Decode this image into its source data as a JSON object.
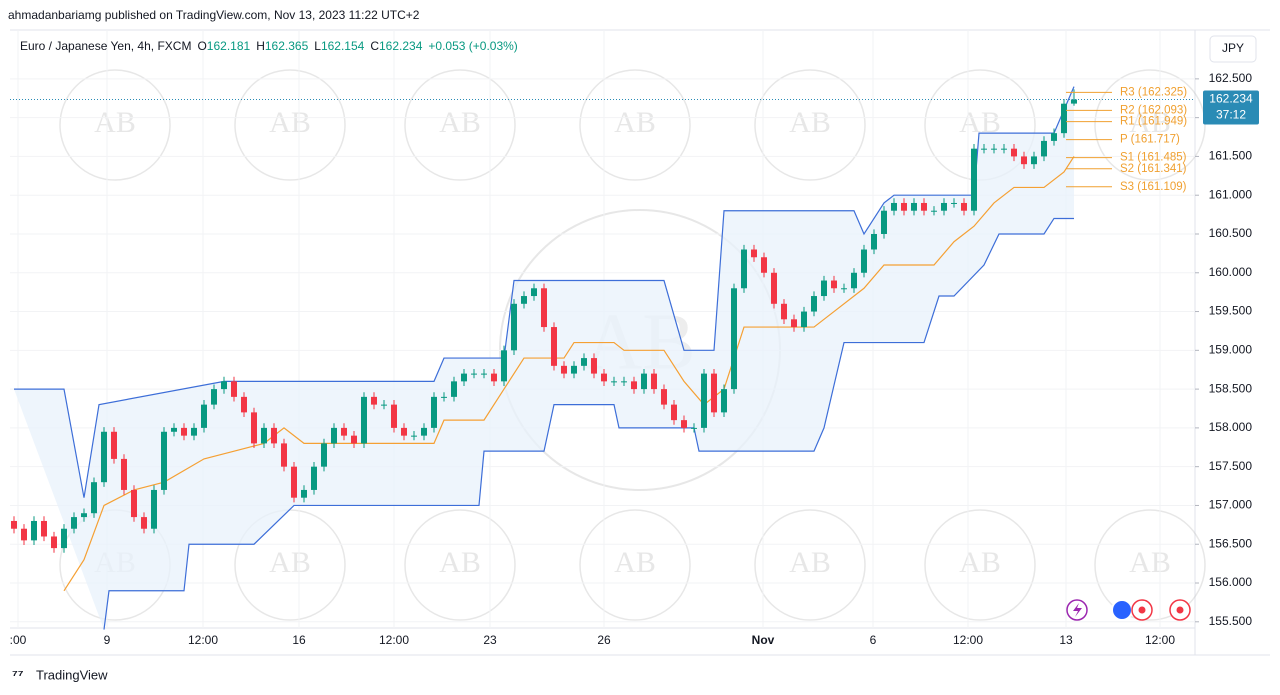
{
  "header": {
    "published": "ahmadanbariamg published on TradingView.com, Nov 13, 2023 11:22 UTC+2",
    "symbol": "Euro / Japanese Yen, 4h, FXCM",
    "o": "O",
    "h": "H",
    "l": "L",
    "c": "C",
    "change": "+0.053 (+0.03%)",
    "currency": "JPY"
  },
  "footer": {
    "brand": "TradingView"
  },
  "watermark": "AB",
  "chart_data": {
    "type": "candlestick",
    "xlim": [
      -0.4,
      118.1
    ],
    "ylim": [
      155.42,
      163.13
    ],
    "grid": true,
    "xticks": [
      {
        "value": 0.4,
        "label": ":00"
      },
      {
        "value": 9.3,
        "label": "9"
      },
      {
        "value": 18.9,
        "label": "12:00"
      },
      {
        "value": 28.5,
        "label": "16"
      },
      {
        "value": 38,
        "label": "12:00"
      },
      {
        "value": 47.6,
        "label": "23"
      },
      {
        "value": 59,
        "label": "26"
      },
      {
        "value": 74.9,
        "label": "Nov"
      },
      {
        "value": 85.9,
        "label": "6"
      },
      {
        "value": 95.4,
        "label": "12:00"
      },
      {
        "value": 105.2,
        "label": "13"
      },
      {
        "value": 114.6,
        "label": "12:00"
      }
    ],
    "yticks": [
      {
        "value": 162.5,
        "label": "162.500"
      },
      {
        "value": 162,
        "label": "162.000"
      },
      {
        "value": 161.5,
        "label": "161.500"
      },
      {
        "value": 161,
        "label": "161.000"
      },
      {
        "value": 160.5,
        "label": "160.500"
      },
      {
        "value": 160,
        "label": "160.000"
      },
      {
        "value": 159.5,
        "label": "159.500"
      },
      {
        "value": 159,
        "label": "159.000"
      },
      {
        "value": 158.5,
        "label": "158.500"
      },
      {
        "value": 158,
        "label": "158.000"
      },
      {
        "value": 157.5,
        "label": "157.500"
      },
      {
        "value": 157,
        "label": "157.000"
      },
      {
        "value": 156.5,
        "label": "156.500"
      },
      {
        "value": 156,
        "label": "156.000"
      },
      {
        "value": 155.5,
        "label": "155.500"
      }
    ],
    "series": [
      {
        "color_up": "#089981",
        "color_down": "#f23645",
        "open": [
          156.8,
          156.7,
          156.55,
          156.8,
          156.6,
          156.45,
          156.7,
          156.85,
          156.9,
          157.3,
          157.95,
          157.6,
          157.2,
          156.85,
          156.7,
          157.2,
          157.95,
          158.0,
          157.9,
          158.0,
          158.3,
          158.5,
          158.6,
          158.4,
          158.2,
          157.8,
          158.0,
          157.8,
          157.5,
          157.1,
          157.2,
          157.5,
          157.8,
          158.0,
          157.9,
          157.8,
          158.4,
          158.3,
          158.3,
          158.0,
          157.9,
          157.9,
          158.0,
          158.4,
          158.4,
          158.6,
          158.7,
          158.7,
          158.7,
          158.6,
          159.0,
          159.6,
          159.7,
          159.8,
          159.3,
          158.8,
          158.7,
          158.8,
          158.9,
          158.7,
          158.6,
          158.6,
          158.6,
          158.5,
          158.7,
          158.5,
          158.3,
          158.1,
          158.0,
          158.0,
          158.7,
          158.2,
          158.5,
          159.8,
          160.3,
          160.2,
          160.0,
          159.6,
          159.4,
          159.3,
          159.5,
          159.7,
          159.9,
          159.8,
          159.8,
          160.0,
          160.3,
          160.5,
          160.8,
          160.9,
          160.8,
          160.9,
          160.8,
          160.8,
          160.9,
          160.9,
          160.8,
          161.6,
          161.6,
          161.6,
          161.6,
          161.5,
          161.4,
          161.5,
          161.7,
          161.8,
          162.181
        ],
        "high": [
          156.86,
          156.76,
          156.86,
          156.86,
          156.66,
          156.76,
          156.91,
          156.96,
          157.36,
          158.01,
          158.01,
          157.66,
          157.26,
          156.91,
          157.26,
          158.01,
          158.06,
          158.06,
          158.06,
          158.36,
          158.56,
          158.66,
          158.66,
          158.46,
          158.26,
          158.06,
          158.06,
          157.86,
          157.56,
          157.26,
          157.56,
          157.86,
          158.06,
          158.06,
          157.96,
          158.46,
          158.46,
          158.36,
          158.36,
          158.06,
          157.96,
          158.06,
          158.46,
          158.46,
          158.66,
          158.76,
          158.76,
          158.76,
          158.76,
          159.06,
          159.66,
          159.76,
          159.86,
          159.86,
          159.36,
          158.86,
          158.86,
          158.96,
          158.96,
          158.76,
          158.66,
          158.66,
          158.66,
          158.76,
          158.76,
          158.56,
          158.36,
          158.16,
          158.06,
          158.76,
          158.76,
          158.56,
          159.86,
          160.36,
          160.36,
          160.26,
          160.06,
          159.66,
          159.46,
          159.56,
          159.76,
          159.96,
          159.96,
          159.86,
          160.06,
          160.36,
          160.56,
          160.86,
          160.96,
          160.96,
          160.96,
          160.96,
          160.86,
          160.96,
          160.96,
          160.96,
          161.66,
          161.66,
          161.66,
          161.66,
          161.66,
          161.56,
          161.56,
          161.76,
          161.86,
          162.24,
          162.365
        ],
        "low": [
          156.64,
          156.49,
          156.49,
          156.54,
          156.39,
          156.39,
          156.64,
          156.79,
          156.84,
          157.24,
          157.54,
          157.14,
          156.79,
          156.64,
          156.64,
          157.14,
          157.89,
          157.84,
          157.84,
          157.94,
          158.24,
          158.44,
          158.34,
          158.14,
          157.74,
          157.74,
          157.74,
          157.44,
          157.04,
          157.04,
          157.14,
          157.44,
          157.74,
          157.84,
          157.74,
          157.74,
          158.24,
          158.24,
          157.94,
          157.84,
          157.84,
          157.84,
          157.94,
          158.34,
          158.34,
          158.54,
          158.64,
          158.64,
          158.54,
          158.54,
          158.94,
          159.54,
          159.64,
          159.24,
          158.74,
          158.64,
          158.64,
          158.74,
          158.64,
          158.54,
          158.54,
          158.54,
          158.44,
          158.44,
          158.44,
          158.24,
          158.04,
          157.94,
          157.94,
          157.94,
          158.14,
          158.14,
          158.44,
          159.74,
          160.14,
          159.94,
          159.54,
          159.34,
          159.24,
          159.24,
          159.44,
          159.64,
          159.74,
          159.74,
          159.74,
          159.94,
          160.24,
          160.44,
          160.74,
          160.74,
          160.74,
          160.74,
          160.74,
          160.74,
          160.84,
          160.74,
          160.74,
          161.54,
          161.54,
          161.54,
          161.44,
          161.34,
          161.34,
          161.44,
          161.64,
          161.74,
          162.154
        ],
        "close": [
          156.7,
          156.55,
          156.8,
          156.6,
          156.45,
          156.7,
          156.85,
          156.9,
          157.3,
          157.95,
          157.6,
          157.2,
          156.85,
          156.7,
          157.2,
          157.95,
          158.0,
          157.9,
          158.0,
          158.3,
          158.5,
          158.6,
          158.4,
          158.2,
          157.8,
          158.0,
          157.8,
          157.5,
          157.1,
          157.2,
          157.5,
          157.8,
          158.0,
          157.9,
          157.8,
          158.4,
          158.3,
          158.3,
          158.0,
          157.9,
          157.9,
          158.0,
          158.4,
          158.4,
          158.6,
          158.7,
          158.7,
          158.7,
          158.6,
          159.0,
          159.6,
          159.7,
          159.8,
          159.3,
          158.8,
          158.7,
          158.8,
          158.9,
          158.7,
          158.6,
          158.6,
          158.6,
          158.5,
          158.7,
          158.5,
          158.3,
          158.1,
          158.0,
          158.0,
          158.7,
          158.2,
          158.5,
          159.8,
          160.3,
          160.2,
          160.0,
          159.6,
          159.4,
          159.3,
          159.5,
          159.7,
          159.9,
          159.8,
          159.8,
          160.0,
          160.3,
          160.5,
          160.8,
          160.9,
          160.8,
          160.9,
          160.8,
          160.8,
          160.9,
          160.9,
          160.8,
          161.6,
          161.6,
          161.6,
          161.6,
          161.5,
          161.4,
          161.5,
          161.7,
          161.8,
          162.18,
          162.234
        ]
      }
    ],
    "bands": [
      {
        "color": "#3d6ed8",
        "x": [
          0,
          5,
          7,
          8.5,
          21,
          35,
          42,
          43,
          49,
          50,
          65,
          67,
          70,
          71,
          84,
          85,
          87,
          88,
          96,
          96.5,
          104,
          106
        ],
        "values": [
          158.5,
          158.5,
          157.1,
          158.3,
          158.6,
          158.6,
          158.6,
          158.9,
          158.9,
          159.9,
          159.9,
          159.0,
          159.0,
          160.8,
          160.8,
          160.5,
          160.9,
          161.0,
          161.0,
          161.8,
          161.8,
          162.4
        ]
      },
      {
        "color": "#3d6ed8",
        "x": [
          9,
          9.5,
          17,
          17.5,
          24,
          28,
          46.5,
          47,
          53,
          54,
          60,
          60.5,
          68,
          68.5,
          80,
          81,
          83,
          91,
          92.5,
          94,
          97,
          98.5,
          103,
          104,
          106
        ],
        "values": [
          155.4,
          155.9,
          155.9,
          156.5,
          156.5,
          157.0,
          157.0,
          157.7,
          157.7,
          158.3,
          158.3,
          158.0,
          158.0,
          157.7,
          157.7,
          158.0,
          159.1,
          159.1,
          159.7,
          159.7,
          160.1,
          160.5,
          160.5,
          160.7,
          160.7
        ]
      },
      {
        "color": "#f5a033",
        "x": [
          5,
          7,
          9,
          12,
          15,
          19,
          22,
          25,
          27,
          29,
          42,
          43,
          47,
          49,
          51,
          55,
          56,
          60,
          61,
          65,
          67,
          69,
          71,
          73,
          80,
          82,
          85,
          87,
          92,
          94,
          96,
          98,
          100,
          103,
          105,
          106
        ],
        "values": [
          155.9,
          156.3,
          157.0,
          157.2,
          157.3,
          157.6,
          157.7,
          157.8,
          158.0,
          157.8,
          157.8,
          158.1,
          158.1,
          158.5,
          158.9,
          158.9,
          159.1,
          159.1,
          159.0,
          159.0,
          158.6,
          158.3,
          158.5,
          159.3,
          159.3,
          159.5,
          159.8,
          160.1,
          160.1,
          160.4,
          160.6,
          160.9,
          161.1,
          161.1,
          161.3,
          161.5
        ]
      }
    ],
    "pivots": {
      "color": "#f0a030",
      "values": [
        162.325,
        162.093,
        161.949,
        161.717,
        161.485,
        161.341,
        161.109
      ],
      "value_labels": [
        "R3 (162.325)",
        "R2 (162.093)",
        "R1 (161.949)",
        "P (161.717)",
        "S1 (161.485)",
        "S2 (161.341)",
        "S3 (161.109)"
      ]
    },
    "countdown": "37:12"
  }
}
